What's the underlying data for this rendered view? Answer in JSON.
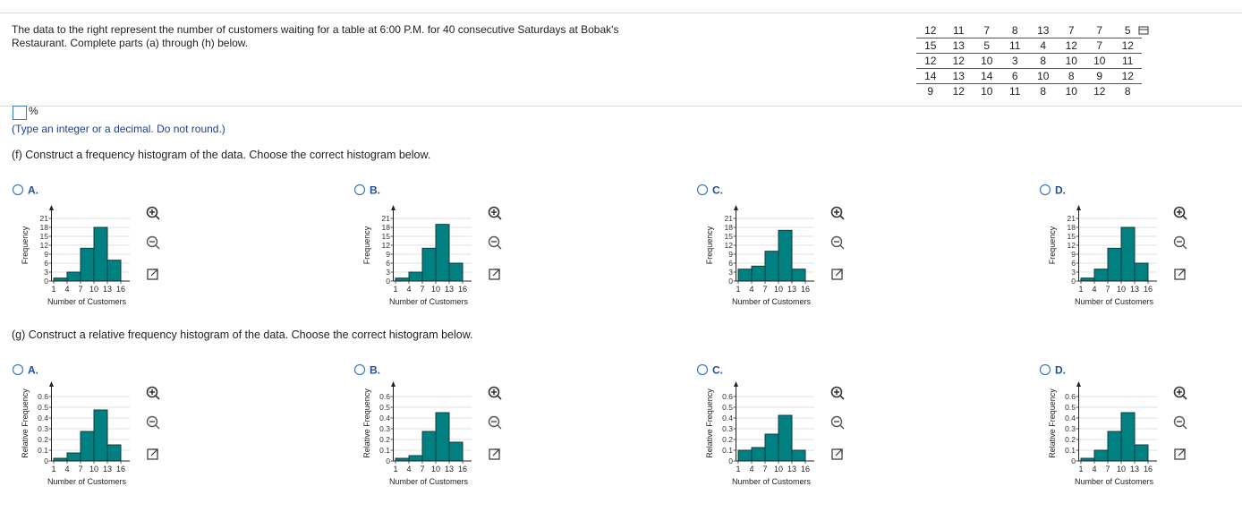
{
  "problem": "The data to the right represent the number of customers waiting for a table at 6:00 P.M. for 40 consecutive Saturdays at Bobak's Restaurant. Complete parts (a) through (h) below.",
  "data_table": [
    [
      12,
      11,
      7,
      8,
      13,
      7,
      7,
      5
    ],
    [
      15,
      13,
      5,
      11,
      4,
      12,
      7,
      12
    ],
    [
      12,
      12,
      10,
      3,
      8,
      10,
      10,
      11
    ],
    [
      14,
      13,
      14,
      6,
      10,
      8,
      9,
      12
    ],
    [
      9,
      12,
      10,
      11,
      8,
      10,
      12,
      8
    ]
  ],
  "answer_unit": "%",
  "hint": "(Type an integer or a decimal. Do not round.)",
  "part_f_prompt": "(f) Construct a frequency histogram of the data. Choose the correct histogram below.",
  "part_g_prompt": "(g) Construct a relative frequency histogram of the data. Choose the correct histogram below.",
  "chart_data": [
    {
      "type": "histogram",
      "option": "A.",
      "ylabel": "Frequency",
      "xlabel": "Number of Customers",
      "bins": [
        1,
        4,
        7,
        10,
        13,
        16
      ],
      "values": [
        1,
        3,
        11,
        18,
        7
      ],
      "color": "#008080",
      "xlim": [
        0.5,
        18
      ],
      "ylim": [
        0,
        24
      ],
      "xticks": [
        1,
        4,
        7,
        10,
        13,
        16
      ],
      "yticks": [
        0,
        3,
        6,
        9,
        12,
        15,
        18,
        21
      ],
      "grid": true
    },
    {
      "type": "histogram",
      "option": "B.",
      "ylabel": "Frequency",
      "xlabel": "Number of Customers",
      "bins": [
        1,
        4,
        7,
        10,
        13,
        16
      ],
      "values": [
        1,
        3,
        11,
        19,
        6
      ],
      "color": "#008080",
      "xlim": [
        0.5,
        18
      ],
      "ylim": [
        0,
        24
      ],
      "xticks": [
        1,
        4,
        7,
        10,
        13,
        16
      ],
      "yticks": [
        0,
        3,
        6,
        9,
        12,
        15,
        18,
        21
      ],
      "grid": true
    },
    {
      "type": "histogram",
      "option": "C.",
      "ylabel": "Frequency",
      "xlabel": "Number of Customers",
      "bins": [
        1,
        4,
        7,
        10,
        13,
        16
      ],
      "values": [
        4,
        5,
        10,
        17,
        4
      ],
      "color": "#008080",
      "xlim": [
        0.5,
        18
      ],
      "ylim": [
        0,
        24
      ],
      "xticks": [
        1,
        4,
        7,
        10,
        13,
        16
      ],
      "yticks": [
        0,
        3,
        6,
        9,
        12,
        15,
        18,
        21
      ],
      "grid": true
    },
    {
      "type": "histogram",
      "option": "D.",
      "ylabel": "Frequency",
      "xlabel": "Number of Customers",
      "bins": [
        1,
        4,
        7,
        10,
        13,
        16
      ],
      "values": [
        1,
        4,
        11,
        18,
        6
      ],
      "color": "#008080",
      "xlim": [
        0.5,
        18
      ],
      "ylim": [
        0,
        24
      ],
      "xticks": [
        1,
        4,
        7,
        10,
        13,
        16
      ],
      "yticks": [
        0,
        3,
        6,
        9,
        12,
        15,
        18,
        21
      ],
      "grid": true
    },
    {
      "type": "histogram",
      "option": "A.",
      "ylabel": "Relative Frequency",
      "xlabel": "Number of Customers",
      "bins": [
        1,
        4,
        7,
        10,
        13,
        16
      ],
      "values": [
        0.025,
        0.075,
        0.275,
        0.475,
        0.15
      ],
      "color": "#008080",
      "xlim": [
        0.5,
        18
      ],
      "ylim": [
        0,
        0.7
      ],
      "xticks": [
        1,
        4,
        7,
        10,
        13,
        16
      ],
      "yticks": [
        0,
        0.1,
        0.2,
        0.3,
        0.4,
        0.5,
        0.6
      ],
      "grid": true
    },
    {
      "type": "histogram",
      "option": "B.",
      "ylabel": "Relative Frequency",
      "xlabel": "Number of Customers",
      "bins": [
        1,
        4,
        7,
        10,
        13,
        16
      ],
      "values": [
        0.025,
        0.05,
        0.275,
        0.45,
        0.175
      ],
      "color": "#008080",
      "xlim": [
        0.5,
        18
      ],
      "ylim": [
        0,
        0.7
      ],
      "xticks": [
        1,
        4,
        7,
        10,
        13,
        16
      ],
      "yticks": [
        0,
        0.1,
        0.2,
        0.3,
        0.4,
        0.5,
        0.6
      ],
      "grid": true
    },
    {
      "type": "histogram",
      "option": "C.",
      "ylabel": "Relative Frequency",
      "xlabel": "Number of Customers",
      "bins": [
        1,
        4,
        7,
        10,
        13,
        16
      ],
      "values": [
        0.1,
        0.125,
        0.25,
        0.425,
        0.1
      ],
      "color": "#008080",
      "xlim": [
        0.5,
        18
      ],
      "ylim": [
        0,
        0.7
      ],
      "xticks": [
        1,
        4,
        7,
        10,
        13,
        16
      ],
      "yticks": [
        0,
        0.1,
        0.2,
        0.3,
        0.4,
        0.5,
        0.6
      ],
      "grid": true
    },
    {
      "type": "histogram",
      "option": "D.",
      "ylabel": "Relative Frequency",
      "xlabel": "Number of Customers",
      "bins": [
        1,
        4,
        7,
        10,
        13,
        16
      ],
      "values": [
        0.025,
        0.1,
        0.275,
        0.45,
        0.15
      ],
      "color": "#008080",
      "xlim": [
        0.5,
        18
      ],
      "ylim": [
        0,
        0.7
      ],
      "xticks": [
        1,
        4,
        7,
        10,
        13,
        16
      ],
      "yticks": [
        0,
        0.1,
        0.2,
        0.3,
        0.4,
        0.5,
        0.6
      ],
      "grid": true
    }
  ]
}
